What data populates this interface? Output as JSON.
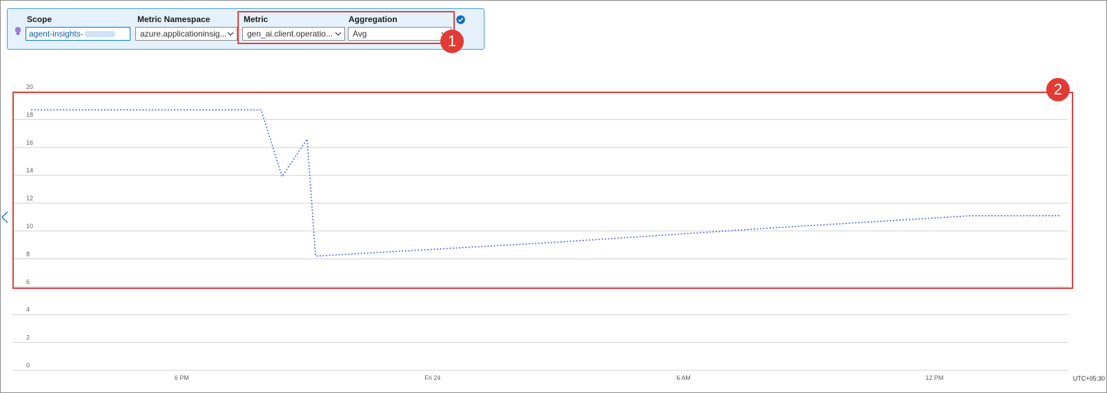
{
  "toolbar": {
    "scope_label": "Scope",
    "scope_value": "agent-insights-",
    "namespace_label": "Metric Namespace",
    "namespace_value": "azure.applicationinsig...",
    "metric_label": "Metric",
    "metric_value": "gen_ai.client.operatio...",
    "aggregation_label": "Aggregation",
    "aggregation_value": "Avg"
  },
  "annotations": {
    "badge1": "1",
    "badge2": "2"
  },
  "timezone": "UTC+05:30",
  "colors": {
    "series": "#5c73e6",
    "highlight": "#e3403c",
    "grid": "#d2d0ce"
  },
  "chart_data": {
    "type": "line",
    "ylim": [
      0,
      20
    ],
    "yticks": [
      0,
      2,
      4,
      6,
      8,
      10,
      12,
      14,
      16,
      18,
      20
    ],
    "xticks": [
      "6 PM",
      "Fri 24",
      "6 AM",
      "12 PM"
    ],
    "xtick_hours": [
      18,
      24,
      30,
      36
    ],
    "xlim_hours": [
      14.3,
      39.2
    ],
    "grid": true,
    "line_style": "dotted",
    "series": [
      {
        "points": [
          [
            14.4,
            18.7
          ],
          [
            19.9,
            18.7
          ],
          [
            20.4,
            13.9
          ],
          [
            21.0,
            16.6
          ],
          [
            21.2,
            8.2
          ],
          [
            27.0,
            9.2
          ],
          [
            32.0,
            10.2
          ],
          [
            36.9,
            11.1
          ],
          [
            39.0,
            11.1
          ]
        ]
      }
    ]
  }
}
